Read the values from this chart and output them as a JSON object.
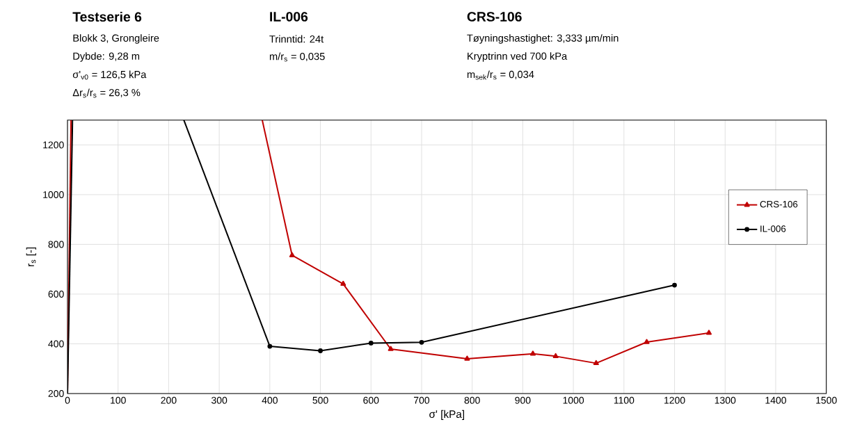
{
  "chart_data": {
    "type": "line",
    "title": "Testserie 6",
    "annotations": [
      "Blokk 3, Grongleire",
      "Dybde: 9,28 m",
      "σ'$_{v0}$ = 126,5 kPa",
      "Δr$_{s}$/r$_{s}$ = 26,3 %",
      "IL-006",
      "Trinntid: 24t",
      "m/r$_{s}$ = 0,035",
      "CRS-106",
      "Tøyningshastighet: 3,333 µm/min",
      "Kryptrinn ved 700 kPa",
      "m$_{sek}$/r$_{s}$ = 0,034"
    ],
    "xlabel": "σ' [kPa]",
    "ylabel": "r$_{s}$ [-]",
    "xlim": [
      0,
      1500
    ],
    "ylim": [
      200,
      1300
    ],
    "xticks": [
      0,
      100,
      200,
      300,
      400,
      500,
      600,
      700,
      800,
      900,
      1000,
      1100,
      1200,
      1300,
      1400,
      1500
    ],
    "yticks": [
      200,
      400,
      600,
      800,
      1000,
      1200
    ],
    "grid": true,
    "legend": "right",
    "series": [
      {
        "name": "CRS-106",
        "color": "#c00000",
        "marker": "triangle",
        "x": [
          444,
          545,
          639,
          790,
          920,
          965,
          1045,
          1145,
          1268
        ],
        "values": [
          756,
          641,
          379,
          340,
          360,
          350,
          322,
          407,
          444
        ]
      },
      {
        "name": "IL-006",
        "color": "#000000",
        "marker": "circle",
        "x": [
          400,
          500,
          600,
          700,
          1200
        ],
        "values": [
          390,
          372,
          403,
          406,
          636
        ]
      },
      {
        "color": "#c00000",
        "marker": "none",
        "x": [
          0,
          7
        ],
        "values": [
          200,
          1300
        ]
      },
      {
        "color": "#c00000",
        "marker": "none",
        "x": [
          385,
          444
        ],
        "values": [
          1300,
          756
        ]
      },
      {
        "color": "#000000",
        "marker": "none",
        "x": [
          0,
          10
        ],
        "values": [
          200,
          1300
        ]
      },
      {
        "color": "#000000",
        "marker": "none",
        "x": [
          230,
          400
        ],
        "values": [
          1300,
          390
        ]
      }
    ]
  }
}
